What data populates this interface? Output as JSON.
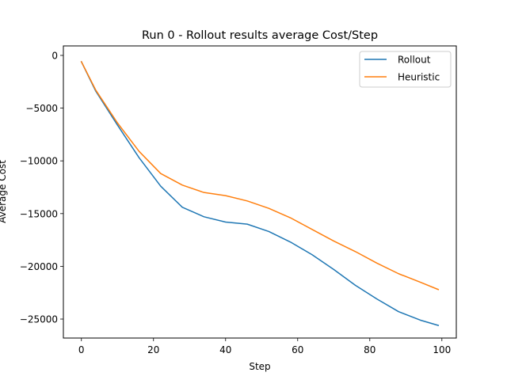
{
  "chart_data": {
    "type": "line",
    "title": "Run 0 - Rollout results average Cost/Step",
    "xlabel": "Step",
    "ylabel": "Average Cost",
    "xlim": [
      -5,
      104
    ],
    "ylim": [
      -26800,
      900
    ],
    "xticks": [
      0,
      20,
      40,
      60,
      80,
      100
    ],
    "yticks": [
      0,
      -5000,
      -10000,
      -15000,
      -20000,
      -25000
    ],
    "xtick_labels": [
      "0",
      "20",
      "40",
      "60",
      "80",
      "100"
    ],
    "ytick_labels": [
      "0",
      "−5000",
      "−10000",
      "−15000",
      "−20000",
      "−25000"
    ],
    "grid": false,
    "legend_position": "top-right",
    "x": [
      0,
      4,
      10,
      16,
      22,
      28,
      34,
      40,
      46,
      52,
      58,
      64,
      70,
      76,
      82,
      88,
      94,
      99
    ],
    "series": [
      {
        "name": "Rollout",
        "color": "#1f77b4",
        "values": [
          -600,
          -3400,
          -6600,
          -9700,
          -12400,
          -14400,
          -15300,
          -15800,
          -16000,
          -16700,
          -17700,
          -18900,
          -20300,
          -21800,
          -23100,
          -24300,
          -25100,
          -25600
        ]
      },
      {
        "name": "Heuristic",
        "color": "#ff7f0e",
        "values": [
          -600,
          -3300,
          -6400,
          -9100,
          -11200,
          -12300,
          -13000,
          -13300,
          -13800,
          -14500,
          -15400,
          -16500,
          -17600,
          -18600,
          -19700,
          -20700,
          -21500,
          -22200
        ]
      }
    ]
  }
}
